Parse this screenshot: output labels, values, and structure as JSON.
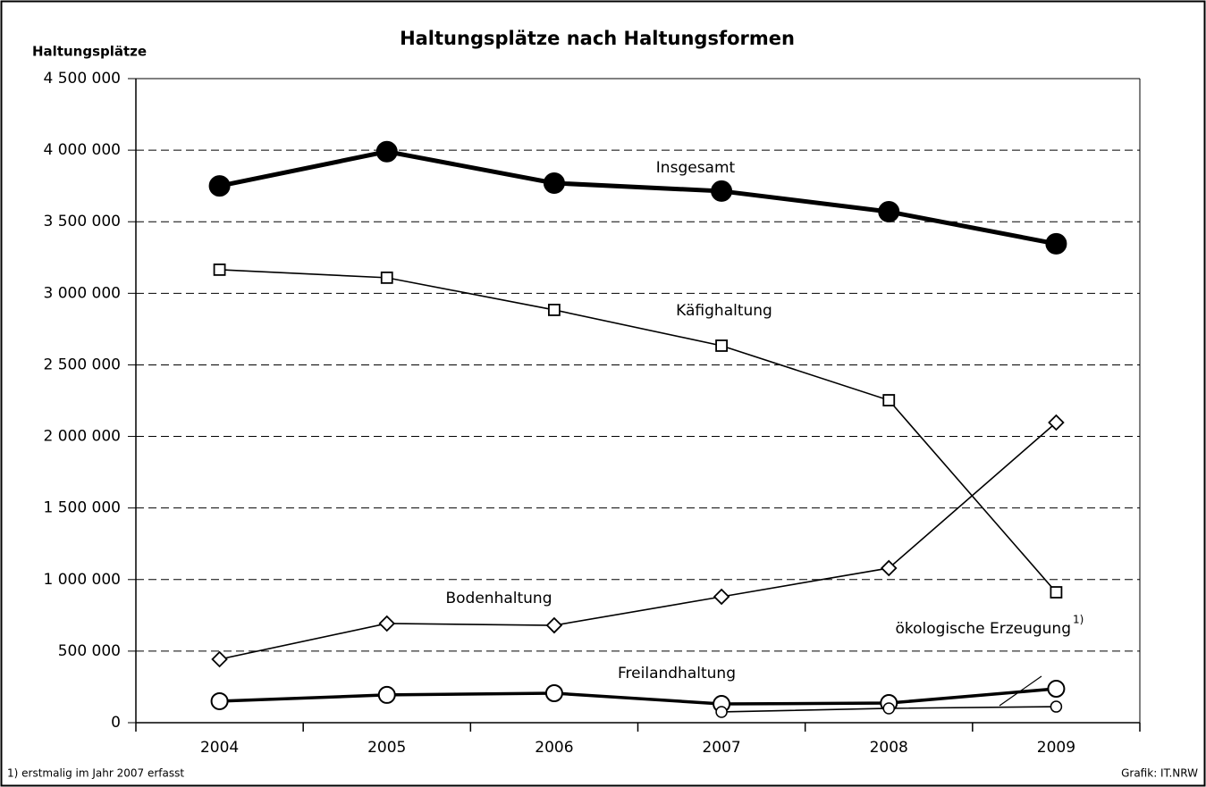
{
  "chart_data": {
    "type": "line",
    "title": "Haltungsplätze nach Haltungsformen",
    "y_axis_label": "Haltungsplätze",
    "categories": [
      "2004",
      "2005",
      "2006",
      "2007",
      "2008",
      "2009"
    ],
    "series": [
      {
        "name": "Insgesamt",
        "color": "#000000",
        "marker": "circle-filled",
        "line_width": 5,
        "values": [
          3750000,
          3990000,
          3770000,
          3714000,
          3570000,
          3346000
        ]
      },
      {
        "name": "Käfighaltung",
        "color": "#000000",
        "marker": "square",
        "line_width": 1.6,
        "values": [
          3165000,
          3109000,
          2884000,
          2634000,
          2253000,
          911000
        ]
      },
      {
        "name": "Bodenhaltung",
        "color": "#000000",
        "marker": "diamond",
        "line_width": 1.6,
        "values": [
          443000,
          693000,
          680000,
          880000,
          1080000,
          2097000
        ]
      },
      {
        "name": "Freilandhaltung",
        "color": "#000000",
        "marker": "circle-open",
        "line_width": 3.5,
        "values": [
          150000,
          194000,
          206000,
          131000,
          137000,
          237000
        ]
      },
      {
        "name": "ökologische Erzeugung",
        "footnote_marker": "1)",
        "color": "#000000",
        "marker": "circle-small",
        "line_width": 1.6,
        "values": [
          null,
          null,
          null,
          75000,
          100000,
          112000
        ]
      }
    ],
    "ylim": [
      0,
      4500000
    ],
    "yticks": [
      0,
      {
        "value": 500000,
        "label": "500 000"
      },
      {
        "value": 1000000,
        "label": "1 000 000"
      },
      {
        "value": 1500000,
        "label": "1 500 000"
      },
      {
        "value": 2000000,
        "label": "2 000 000"
      },
      {
        "value": 2500000,
        "label": "2 500 000"
      },
      {
        "value": 3000000,
        "label": "3 000 000"
      },
      {
        "value": 3500000,
        "label": "3 500 000"
      },
      {
        "value": 4000000,
        "label": "4 000 000"
      },
      {
        "value": 4500000,
        "label": "4 500 000"
      }
    ],
    "grid": true,
    "footnote": "1) erstmalig im Jahr 2007 erfasst",
    "source": "Grafik: IT.NRW"
  }
}
